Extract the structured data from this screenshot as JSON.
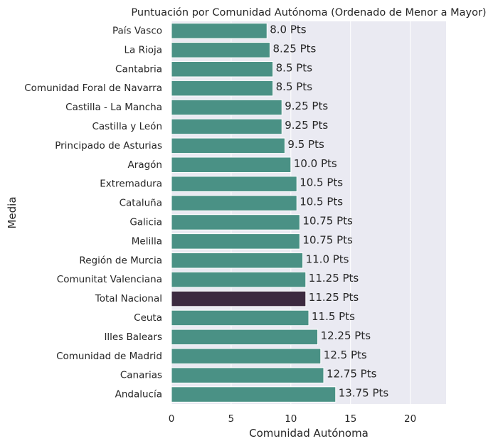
{
  "chart_data": {
    "type": "bar",
    "orientation": "horizontal",
    "title": "Puntuación por Comunidad Autónoma (Ordenado de Menor a Mayor)",
    "xlabel": "Comunidad Autónoma",
    "ylabel": "Media",
    "xlim": [
      0,
      23
    ],
    "xticks": [
      0,
      5,
      10,
      15,
      20
    ],
    "grid": true,
    "background_color": "#eaeaf2",
    "bar_color": "#4a9185",
    "highlight_color": "#3d2a40",
    "highlight_category": "Total Nacional",
    "categories": [
      "País Vasco",
      "La Rioja",
      "Cantabria",
      "Comunidad Foral de Navarra",
      "Castilla - La Mancha",
      "Castilla y León",
      "Principado de Asturias",
      "Aragón",
      "Extremadura",
      "Cataluña",
      "Galicia",
      "Melilla",
      "Región de Murcia",
      "Comunitat Valenciana",
      "Total Nacional",
      "Ceuta",
      "Illes Balears",
      "Comunidad de Madrid",
      "Canarias",
      "Andalucía"
    ],
    "values": [
      8.0,
      8.25,
      8.5,
      8.5,
      9.25,
      9.25,
      9.5,
      10.0,
      10.5,
      10.5,
      10.75,
      10.75,
      11.0,
      11.25,
      11.25,
      11.5,
      12.25,
      12.5,
      12.75,
      13.75
    ],
    "data_labels": [
      "8.0 Pts",
      "8.25 Pts",
      "8.5 Pts",
      "8.5 Pts",
      "9.25 Pts",
      "9.25 Pts",
      "9.5 Pts",
      "10.0 Pts",
      "10.5 Pts",
      "10.5 Pts",
      "10.75 Pts",
      "10.75 Pts",
      "11.0 Pts",
      "11.25 Pts",
      "11.25 Pts",
      "11.5 Pts",
      "12.25 Pts",
      "12.5 Pts",
      "12.75 Pts",
      "13.75 Pts"
    ]
  }
}
